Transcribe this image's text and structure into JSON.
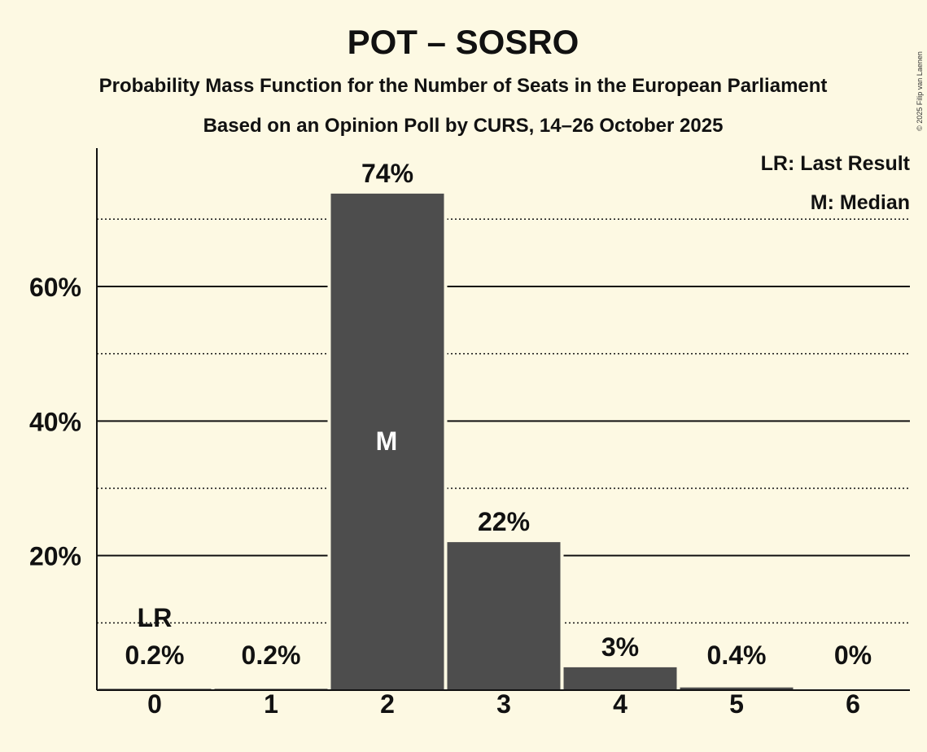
{
  "chart_data": {
    "type": "bar",
    "title": "POT – SOSRO",
    "subtitle": "Probability Mass Function for the Number of Seats in the European Parliament",
    "subtitle2": "Based on an Opinion Poll by CURS, 14–26 October 2025",
    "categories": [
      "0",
      "1",
      "2",
      "3",
      "4",
      "5",
      "6"
    ],
    "values": [
      0.2,
      0.2,
      73.8,
      22.0,
      3.4,
      0.4,
      0.0
    ],
    "value_labels": [
      "0.2%",
      "0.2%",
      "74%",
      "22%",
      "3%",
      "0.4%",
      "0%"
    ],
    "ylim": [
      0,
      80
    ],
    "major_ticks": [
      20,
      40,
      60
    ],
    "major_tick_labels": [
      "20%",
      "40%",
      "60%"
    ],
    "minor_ticks": [
      10,
      30,
      50,
      70
    ],
    "last_result_index": 0,
    "last_result_marker": "LR",
    "median_index": 2,
    "median_marker": "M",
    "legend": [
      "LR: Last Result",
      "M: Median"
    ],
    "bar_color": "#4d4d4d",
    "copyright": "© 2025 Filip van Laenen"
  }
}
